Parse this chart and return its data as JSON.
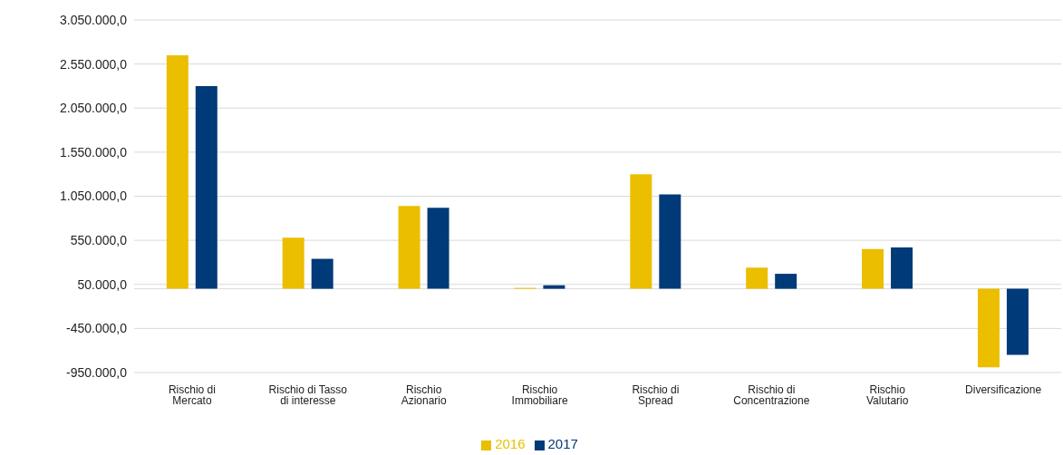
{
  "chart_data": {
    "type": "bar",
    "categories": [
      "Rischio di Mercato",
      "Rischio di Tasso di interesse",
      "Rischio Azionario",
      "Rischio Immobiliare",
      "Rischio di Spread",
      "Rischio di Concentrazione",
      "Rischio Valutario",
      "Diversificazione"
    ],
    "series": [
      {
        "name": "2016",
        "color": "#ebbe00",
        "values": [
          2650000,
          580000,
          940000,
          10000,
          1300000,
          240000,
          450000,
          -890000
        ]
      },
      {
        "name": "2017",
        "color": "#003a78",
        "values": [
          2300000,
          340000,
          920000,
          40000,
          1070000,
          170000,
          470000,
          -750000
        ]
      }
    ],
    "ylim": [
      -950000,
      3050000
    ],
    "yticks": [
      {
        "value": -950000,
        "label": "-950.000,0"
      },
      {
        "value": -450000,
        "label": "-450.000,0"
      },
      {
        "value": 50000,
        "label": "50.000,0"
      },
      {
        "value": 550000,
        "label": "550.000,0"
      },
      {
        "value": 1050000,
        "label": "1.050.000,0"
      },
      {
        "value": 1550000,
        "label": "1.550.000,0"
      },
      {
        "value": 2050000,
        "label": "2.050.000,0"
      },
      {
        "value": 2550000,
        "label": "2.550.000,0"
      },
      {
        "value": 3050000,
        "label": "3.050.000,0"
      }
    ],
    "grid": "y",
    "legend": "bottom"
  }
}
